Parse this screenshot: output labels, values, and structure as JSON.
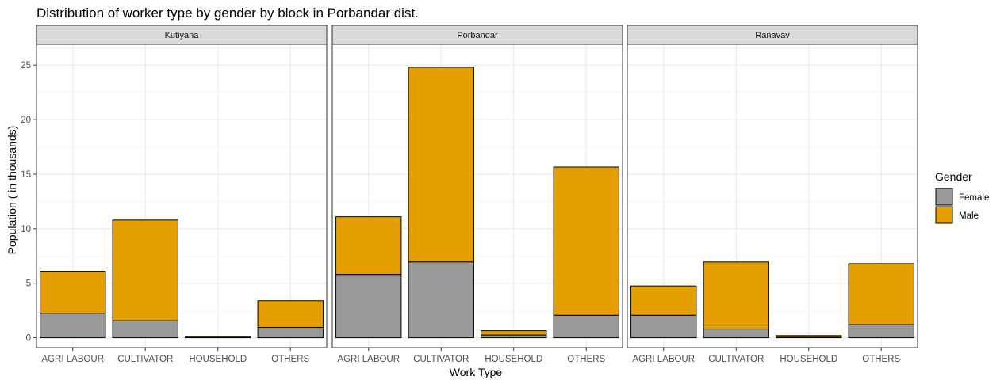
{
  "chart_data": {
    "type": "bar",
    "stacked": true,
    "title": "Distribution of worker type by gender by block in Porbandar dist.",
    "xlabel": "Work Type",
    "ylabel": "Population ( in thousands)",
    "ylim": [
      -0.9,
      26.9
    ],
    "yticks": [
      0,
      5,
      10,
      15,
      20,
      25
    ],
    "grid": true,
    "legend": {
      "title": "Gender",
      "placement": "right"
    },
    "categories": [
      "AGRI LABOUR",
      "CULTIVATOR",
      "HOUSEHOLD",
      "OTHERS"
    ],
    "series_colors": {
      "Female": "#999999",
      "Male": "#E69F00"
    },
    "facets": [
      {
        "name": "Kutiyana",
        "series": [
          {
            "name": "Female",
            "values": [
              2.2,
              1.55,
              0.05,
              0.95
            ]
          },
          {
            "name": "Male",
            "values": [
              3.9,
              9.25,
              0.1,
              2.45
            ]
          }
        ]
      },
      {
        "name": "Porbandar",
        "series": [
          {
            "name": "Female",
            "values": [
              5.8,
              6.95,
              0.25,
              2.05
            ]
          },
          {
            "name": "Male",
            "values": [
              5.3,
              17.85,
              0.4,
              13.6
            ]
          }
        ]
      },
      {
        "name": "Ranavav",
        "series": [
          {
            "name": "Female",
            "values": [
              2.05,
              0.8,
              0.05,
              1.2
            ]
          },
          {
            "name": "Male",
            "values": [
              2.7,
              6.15,
              0.15,
              5.6
            ]
          }
        ]
      }
    ]
  }
}
